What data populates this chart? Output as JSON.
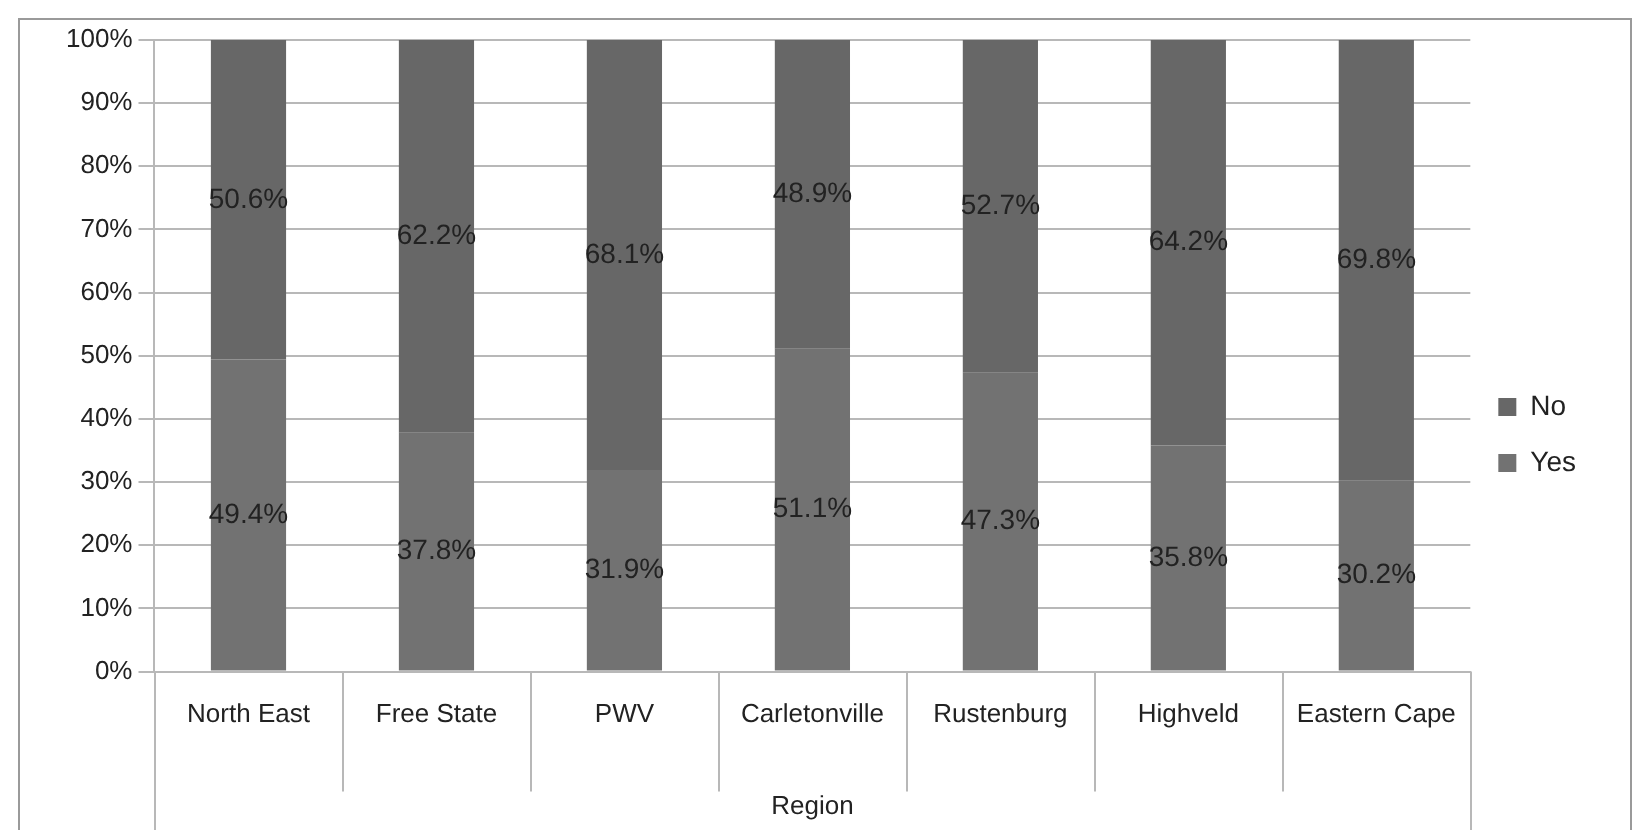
{
  "chart_data": {
    "type": "bar",
    "stacked": true,
    "xlabel": "Region",
    "categories": [
      "North East",
      "Free State",
      "PWV",
      "Carletonville",
      "Rustenburg",
      "Highveld",
      "Eastern Cape"
    ],
    "series": [
      {
        "name": "Yes",
        "color": "#727272",
        "values": [
          49.4,
          37.8,
          31.9,
          51.1,
          47.3,
          35.8,
          30.2
        ],
        "value_labels": [
          "49.4%",
          "37.8%",
          "31.9%",
          "51.1%",
          "47.3%",
          "35.8%",
          "30.2%"
        ]
      },
      {
        "name": "No",
        "color": "#676767",
        "values": [
          50.6,
          62.2,
          68.1,
          48.9,
          52.7,
          64.2,
          69.8
        ],
        "value_labels": [
          "50.6%",
          "62.2%",
          "68.1%",
          "48.9%",
          "52.7%",
          "64.2%",
          "69.8%"
        ]
      }
    ],
    "ylim": [
      0,
      100
    ],
    "yticks": [
      {
        "value": 0,
        "label": "0%"
      },
      {
        "value": 10,
        "label": "10%"
      },
      {
        "value": 20,
        "label": "20%"
      },
      {
        "value": 30,
        "label": "30%"
      },
      {
        "value": 40,
        "label": "40%"
      },
      {
        "value": 50,
        "label": "50%"
      },
      {
        "value": 60,
        "label": "60%"
      },
      {
        "value": 70,
        "label": "70%"
      },
      {
        "value": 80,
        "label": "80%"
      },
      {
        "value": 90,
        "label": "90%"
      },
      {
        "value": 100,
        "label": "100%"
      }
    ],
    "grid": "y",
    "legend": "right"
  }
}
